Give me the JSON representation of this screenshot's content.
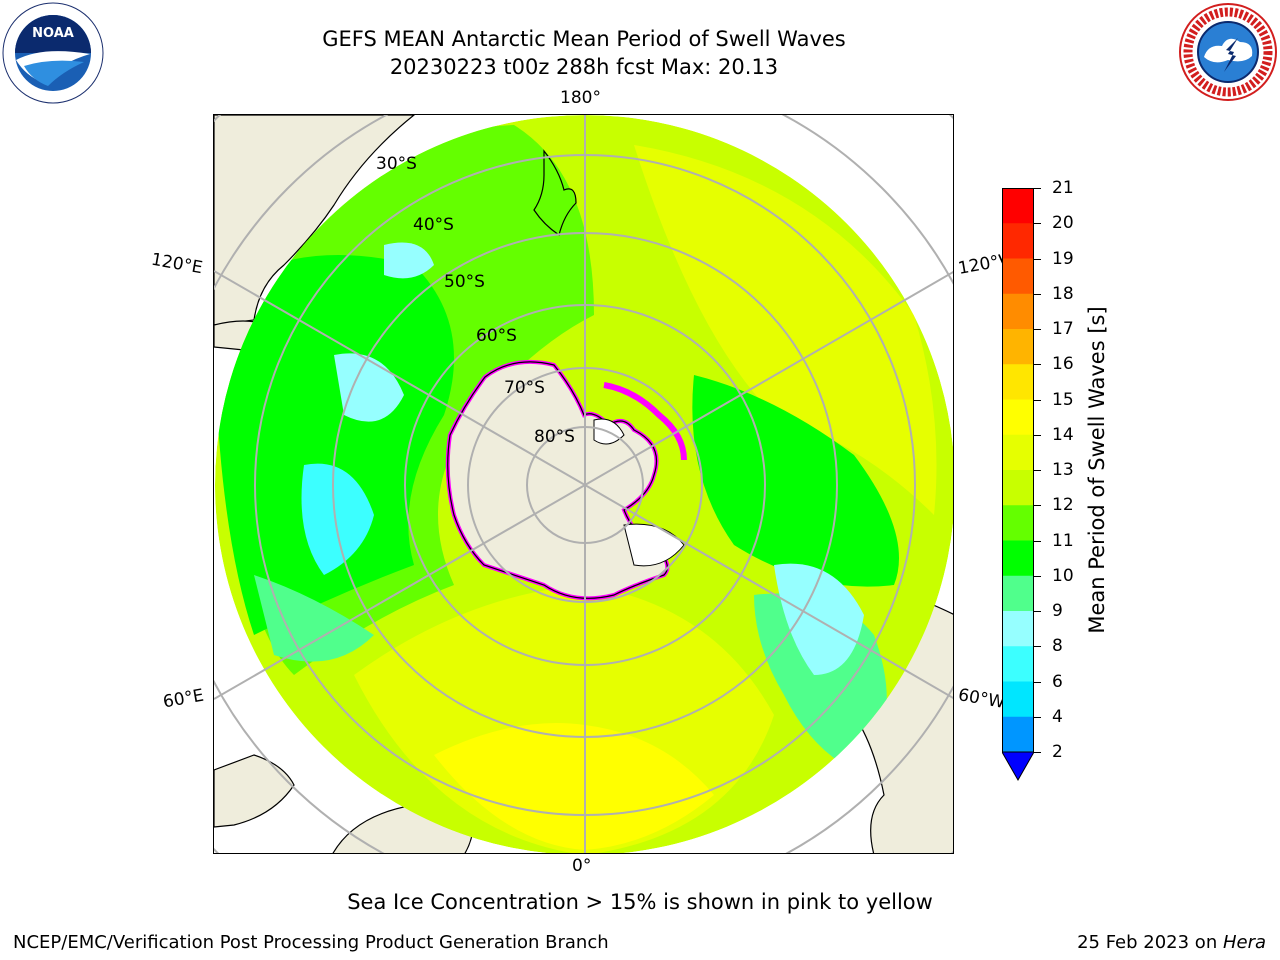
{
  "title": {
    "line1": "GEFS MEAN Antarctic Mean Period of Swell Waves",
    "line2": "20230223 t00z 288h fcst   Max: 20.13"
  },
  "map": {
    "projection": "south-polar-stereographic",
    "lon_labels": {
      "top": "180°",
      "bottom": "0°",
      "left_upper": "120°E",
      "left_lower": "60°E",
      "right_upper": "120°W",
      "right_lower": "60°W"
    },
    "lat_labels": [
      "30°S",
      "40°S",
      "50°S",
      "60°S",
      "70°S",
      "80°S"
    ],
    "land_color": "#efeddc",
    "sea_ice_colors": [
      "#ff00ff",
      "#ff88cc",
      "#ffff00"
    ]
  },
  "colorbar": {
    "label": "Mean Period of Swell Waves [s]",
    "ticks": [
      "2",
      "4",
      "6",
      "8",
      "9",
      "10",
      "11",
      "12",
      "13",
      "14",
      "15",
      "16",
      "17",
      "18",
      "19",
      "20",
      "21"
    ],
    "colors": [
      "#0032ff",
      "#0096ff",
      "#00e6ff",
      "#3cffff",
      "#96ffff",
      "#50ff8c",
      "#00ff00",
      "#64ff00",
      "#c8ff00",
      "#e6ff00",
      "#ffff00",
      "#ffe600",
      "#ffb400",
      "#ff8c00",
      "#ff5a00",
      "#ff2800",
      "#ff0000"
    ],
    "extend_min_color": "#0000ff"
  },
  "note": "Sea Ice Concentration > 15% is shown in pink to yellow",
  "footer": {
    "left": "NCEP/EMC/Verification Post Processing Product Generation Branch",
    "date": "25 Feb 2023 on ",
    "host": "Hera"
  },
  "logos": {
    "left": "NOAA",
    "right": "NATIONAL WEATHER SERVICE"
  }
}
